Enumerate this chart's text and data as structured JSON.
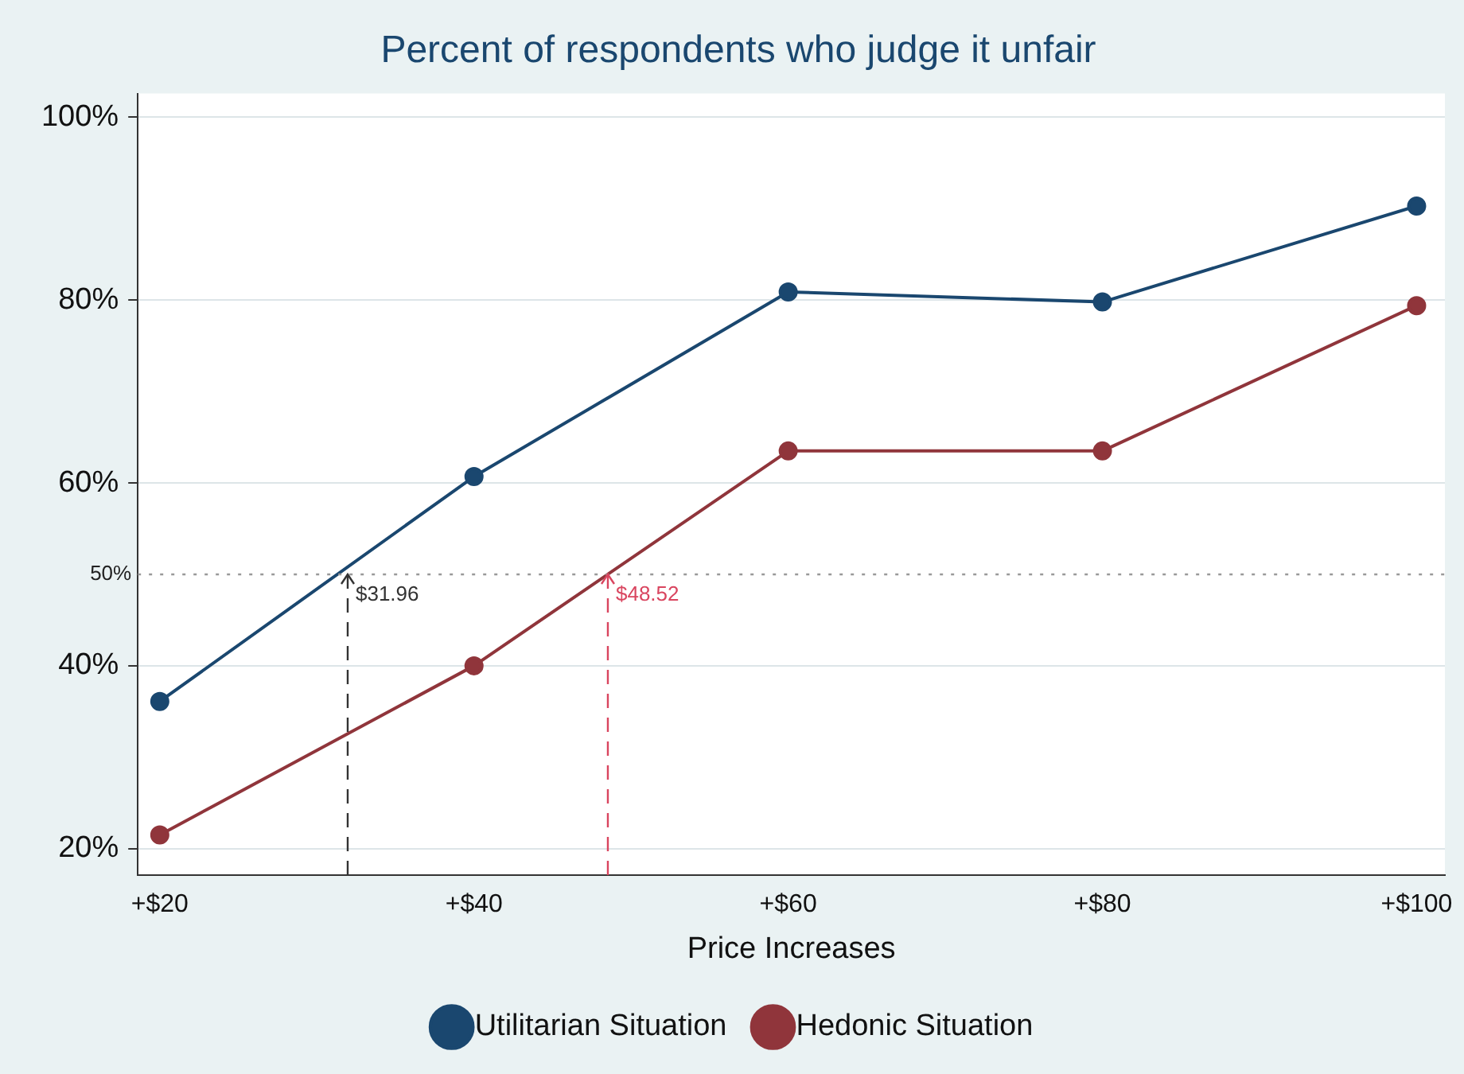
{
  "chart_data": {
    "type": "line",
    "title": "Percent of respondents who judge it unfair",
    "xlabel": "Price Increases",
    "x": [
      20,
      40,
      60,
      80,
      100
    ],
    "series": [
      {
        "name": "Utilitarian Situation",
        "color": "#1a476f",
        "values": [
          36.1,
          60.7,
          80.9,
          79.8,
          90.3
        ]
      },
      {
        "name": "Hedonic Situation",
        "color": "#90353b",
        "values": [
          21.5,
          40,
          63.5,
          63.5,
          79.4
        ]
      }
    ],
    "xlim": [
      18.6,
      101.8
    ],
    "ylim": [
      17.1,
      102.6
    ],
    "xticks": [
      {
        "value": 20,
        "label": "+$20"
      },
      {
        "value": 40,
        "label": "+$40"
      },
      {
        "value": 60,
        "label": "+$60"
      },
      {
        "value": 80,
        "label": "+$80"
      },
      {
        "value": 100,
        "label": "+$100"
      }
    ],
    "yticks": [
      {
        "value": 20,
        "label": "20%"
      },
      {
        "value": 40,
        "label": "40%"
      },
      {
        "value": 60,
        "label": "60%"
      },
      {
        "value": 80,
        "label": "80%"
      },
      {
        "value": 100,
        "label": "100%"
      }
    ],
    "ref_lines": [
      {
        "axis": "y",
        "value": 50,
        "label": "50%",
        "color": "#999999",
        "line_style": "dotted"
      },
      {
        "axis": "x",
        "value": 31.96,
        "label": "$31.96",
        "color": "#333333",
        "line_style": "dashed"
      },
      {
        "axis": "x",
        "value": 48.52,
        "label": "$48.52",
        "color": "#d9455f",
        "line_style": "dashed"
      }
    ],
    "grid": "y",
    "legend": "bottom",
    "marker": "circle",
    "line_style": "solid"
  }
}
